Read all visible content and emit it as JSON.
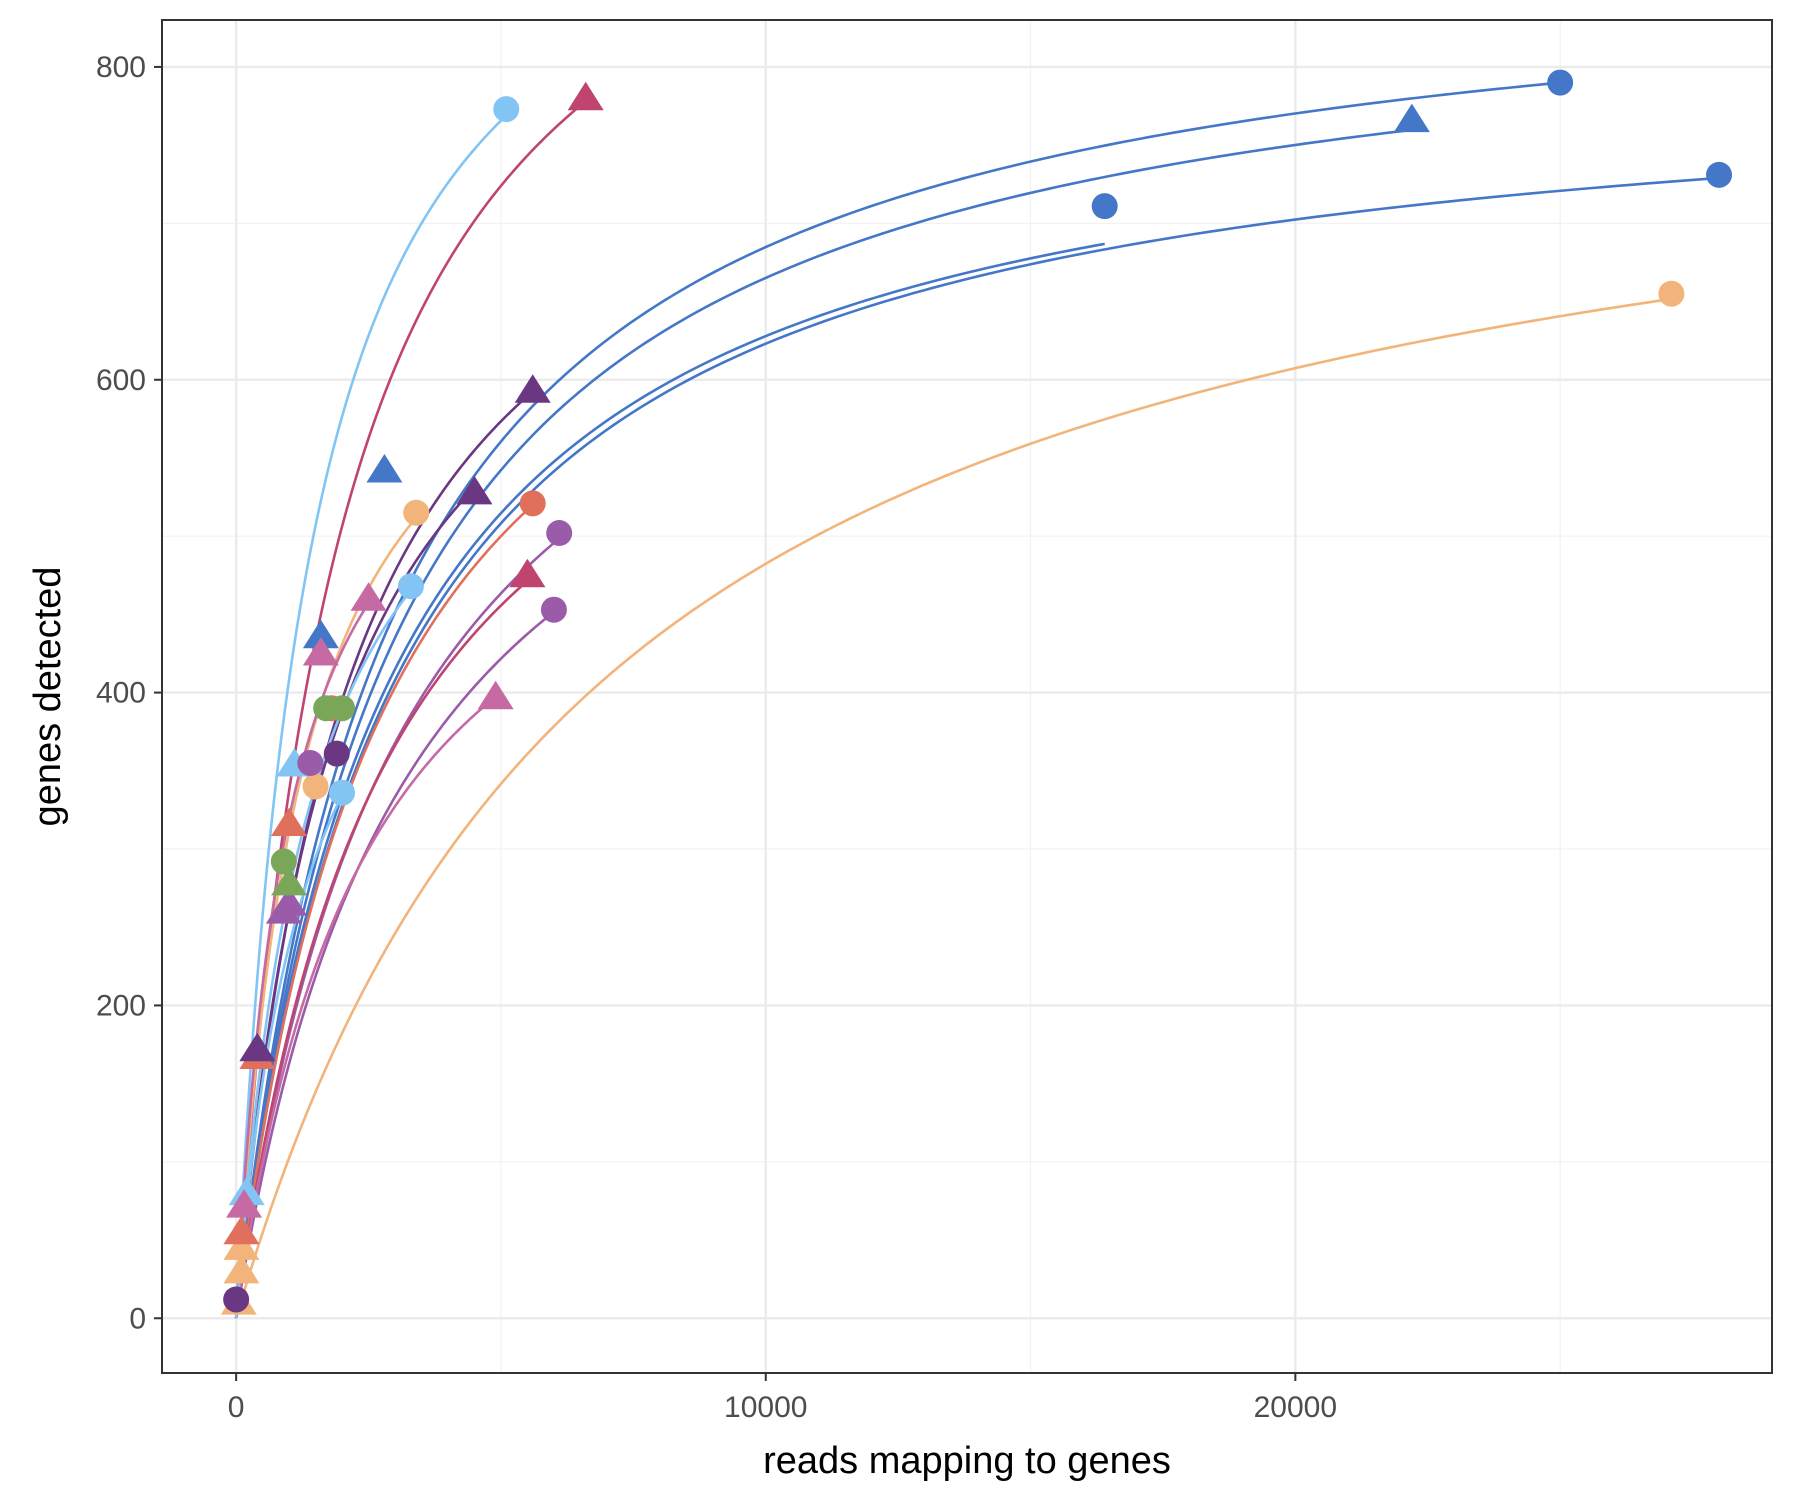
{
  "chart_data": {
    "type": "scatter",
    "title": "",
    "xlabel": "reads mapping to genes",
    "ylabel": "genes detected",
    "xlim": [
      -1400,
      29000
    ],
    "ylim": [
      -35,
      830
    ],
    "x_ticks": [
      0,
      10000,
      20000
    ],
    "x_tick_labels": [
      "0",
      "10000",
      "20000"
    ],
    "y_ticks": [
      0,
      200,
      400,
      600,
      800
    ],
    "y_tick_labels": [
      "0",
      "200",
      "400",
      "600",
      "800"
    ],
    "grid": true,
    "legend": "none",
    "colors": {
      "steelblue": "#4477c8",
      "lightblue": "#82c5f5",
      "crimson": "#bf4470",
      "peach": "#f2b47a",
      "coral": "#e0705c",
      "purple": "#9a5ca8",
      "darkpurple": "#6a3782",
      "pink": "#c56aa2",
      "green": "#7aa65a"
    },
    "series": [
      {
        "color": "#4477c8",
        "marker": "circle",
        "points": [
          [
            25000,
            790
          ]
        ]
      },
      {
        "color": "#4477c8",
        "marker": "triangle",
        "points": [
          [
            22200,
            766
          ]
        ]
      },
      {
        "color": "#4477c8",
        "marker": "circle",
        "points": [
          [
            28000,
            731
          ]
        ]
      },
      {
        "color": "#4477c8",
        "marker": "circle",
        "points": [
          [
            16400,
            711
          ]
        ]
      },
      {
        "color": "#4477c8",
        "marker": "triangle",
        "points": [
          [
            2800,
            542
          ]
        ]
      },
      {
        "color": "#4477c8",
        "marker": "triangle",
        "points": [
          [
            1600,
            436
          ]
        ]
      },
      {
        "color": "#82c5f5",
        "marker": "circle",
        "points": [
          [
            5100,
            773
          ]
        ]
      },
      {
        "color": "#82c5f5",
        "marker": "circle",
        "points": [
          [
            3300,
            468
          ]
        ]
      },
      {
        "color": "#82c5f5",
        "marker": "circle",
        "points": [
          [
            2000,
            336
          ]
        ]
      },
      {
        "color": "#82c5f5",
        "marker": "triangle",
        "points": [
          [
            1100,
            354
          ],
          [
            200,
            80
          ]
        ]
      },
      {
        "color": "#bf4470",
        "marker": "triangle",
        "points": [
          [
            6600,
            780
          ],
          [
            5500,
            475
          ]
        ]
      },
      {
        "color": "#f2b47a",
        "marker": "circle",
        "points": [
          [
            27100,
            655
          ],
          [
            3400,
            515
          ],
          [
            1500,
            340
          ]
        ]
      },
      {
        "color": "#f2b47a",
        "marker": "triangle",
        "points": [
          [
            100,
            30
          ],
          [
            100,
            45
          ],
          [
            50,
            10
          ]
        ]
      },
      {
        "color": "#e0705c",
        "marker": "circle",
        "points": [
          [
            5600,
            521
          ],
          [
            1800,
            390
          ]
        ]
      },
      {
        "color": "#e0705c",
        "marker": "triangle",
        "points": [
          [
            1000,
            316
          ],
          [
            400,
            167
          ],
          [
            100,
            55
          ]
        ]
      },
      {
        "color": "#9a5ca8",
        "marker": "circle",
        "points": [
          [
            6100,
            502
          ],
          [
            6000,
            453
          ],
          [
            1400,
            355
          ]
        ]
      },
      {
        "color": "#9a5ca8",
        "marker": "triangle",
        "points": [
          [
            1000,
            265
          ],
          [
            900,
            260
          ]
        ]
      },
      {
        "color": "#6a3782",
        "marker": "circle",
        "points": [
          [
            1900,
            361
          ],
          [
            0,
            12
          ]
        ]
      },
      {
        "color": "#6a3782",
        "marker": "triangle",
        "points": [
          [
            5600,
            593
          ],
          [
            4500,
            528
          ],
          [
            400,
            172
          ]
        ]
      },
      {
        "color": "#c56aa2",
        "marker": "triangle",
        "points": [
          [
            4900,
            397
          ],
          [
            2500,
            460
          ],
          [
            1600,
            425
          ],
          [
            150,
            72
          ]
        ]
      },
      {
        "color": "#7aa65a",
        "marker": "circle",
        "points": [
          [
            2000,
            390
          ],
          [
            1700,
            390
          ],
          [
            900,
            292
          ]
        ]
      },
      {
        "color": "#7aa65a",
        "marker": "triangle",
        "points": [
          [
            1000,
            278
          ]
        ]
      }
    ],
    "curves": [
      {
        "color": "#82c5f5",
        "vmax": 980,
        "k": 1400,
        "x_end": 5100
      },
      {
        "color": "#bf4470",
        "vmax": 1015,
        "k": 2010,
        "x_end": 6600
      },
      {
        "color": "#4477c8",
        "vmax": 880,
        "k": 2850,
        "x_end": 25000
      },
      {
        "color": "#4477c8",
        "vmax": 860,
        "k": 2930,
        "x_end": 22200
      },
      {
        "color": "#4477c8",
        "vmax": 805,
        "k": 2820,
        "x_end": 16400
      },
      {
        "color": "#4477c8",
        "vmax": 805,
        "k": 2920,
        "x_end": 28000
      },
      {
        "color": "#6a3782",
        "vmax": 820,
        "k": 2150,
        "x_end": 5600
      },
      {
        "color": "#6a3782",
        "vmax": 755,
        "k": 1900,
        "x_end": 4500
      },
      {
        "color": "#f2b47a",
        "vmax": 820,
        "k": 7000,
        "x_end": 27100
      },
      {
        "color": "#f2b47a",
        "vmax": 700,
        "k": 1250,
        "x_end": 3400
      },
      {
        "color": "#e0705c",
        "vmax": 780,
        "k": 2800,
        "x_end": 5600
      },
      {
        "color": "#9a5ca8",
        "vmax": 760,
        "k": 3200,
        "x_end": 6100
      },
      {
        "color": "#9a5ca8",
        "vmax": 700,
        "k": 3300,
        "x_end": 6000
      },
      {
        "color": "#bf4470",
        "vmax": 720,
        "k": 2900,
        "x_end": 5500
      },
      {
        "color": "#82c5f5",
        "vmax": 670,
        "k": 1450,
        "x_end": 3300
      },
      {
        "color": "#c56aa2",
        "vmax": 600,
        "k": 2500,
        "x_end": 4900
      },
      {
        "color": "#c56aa2",
        "vmax": 640,
        "k": 1000,
        "x_end": 2500
      },
      {
        "color": "#82c5f5",
        "vmax": 560,
        "k": 1350,
        "x_end": 2000
      }
    ]
  }
}
